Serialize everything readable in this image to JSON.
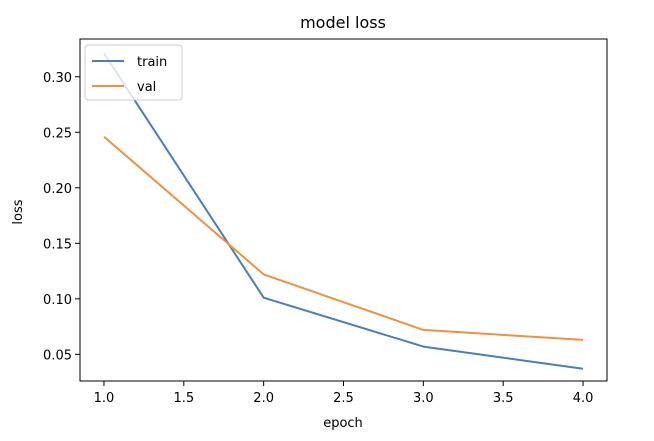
{
  "chart_data": {
    "type": "line",
    "title": "model loss",
    "xlabel": "epoch",
    "ylabel": "loss",
    "xlim": [
      0.85,
      4.15
    ],
    "ylim": [
      0.026,
      0.334
    ],
    "xticks": [
      1.0,
      1.5,
      2.0,
      2.5,
      3.0,
      3.5,
      4.0
    ],
    "xtick_labels": [
      "1.0",
      "1.5",
      "2.0",
      "2.5",
      "3.0",
      "3.5",
      "4.0"
    ],
    "yticks": [
      0.05,
      0.1,
      0.15,
      0.2,
      0.25,
      0.3
    ],
    "ytick_labels": [
      "0.05",
      "0.10",
      "0.15",
      "0.20",
      "0.25",
      "0.30"
    ],
    "grid": false,
    "legend_position": "top-left",
    "series": [
      {
        "name": "train",
        "color": "#4a7fb5",
        "x": [
          1.0,
          2.0,
          3.0,
          4.0
        ],
        "values": [
          0.321,
          0.101,
          0.057,
          0.037
        ]
      },
      {
        "name": "val",
        "color": "#f0913e",
        "x": [
          1.0,
          2.0,
          3.0,
          4.0
        ],
        "values": [
          0.246,
          0.122,
          0.072,
          0.063
        ]
      }
    ]
  }
}
